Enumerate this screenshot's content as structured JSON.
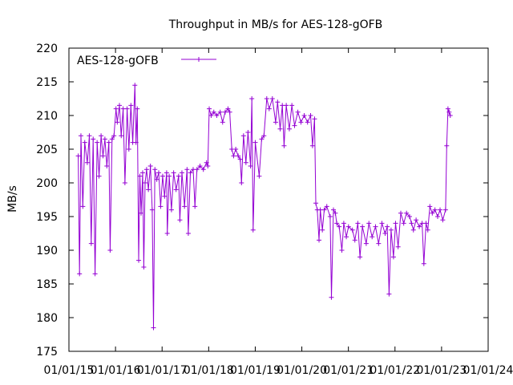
{
  "chart_data": {
    "type": "line",
    "title": "Throughput in MB/s for AES-128-gOFB",
    "xlabel": "",
    "ylabel": "MB/s",
    "ylim": [
      175,
      220
    ],
    "xlim": [
      "2015-01-01",
      "2024-01-01"
    ],
    "x_scale": "date",
    "grid": false,
    "legend": "top-left",
    "yticks": [
      175,
      180,
      185,
      190,
      195,
      200,
      205,
      210,
      215,
      220
    ],
    "xticks": [
      "01/01/15",
      "01/01/16",
      "01/01/17",
      "01/01/18",
      "01/01/19",
      "01/01/20",
      "01/01/21",
      "01/01/22",
      "01/01/23",
      "01/01/24"
    ],
    "series": [
      {
        "name": "AES-128-gOFB",
        "color": "#9400d3",
        "marker": "plus",
        "points": [
          [
            "2015-03-15",
            204
          ],
          [
            "2015-03-25",
            186.5
          ],
          [
            "2015-04-05",
            207
          ],
          [
            "2015-04-20",
            196.5
          ],
          [
            "2015-05-05",
            206
          ],
          [
            "2015-05-25",
            203
          ],
          [
            "2015-06-10",
            207
          ],
          [
            "2015-06-25",
            191
          ],
          [
            "2015-07-10",
            206.5
          ],
          [
            "2015-07-25",
            186.5
          ],
          [
            "2015-08-10",
            206
          ],
          [
            "2015-08-25",
            201
          ],
          [
            "2015-09-10",
            207
          ],
          [
            "2015-09-25",
            204
          ],
          [
            "2015-10-10",
            206.5
          ],
          [
            "2015-10-25",
            202.5
          ],
          [
            "2015-11-10",
            206
          ],
          [
            "2015-11-20",
            190
          ],
          [
            "2015-12-05",
            206.5
          ],
          [
            "2015-12-20",
            207
          ],
          [
            "2016-01-05",
            211
          ],
          [
            "2016-01-15",
            209
          ],
          [
            "2016-02-01",
            211.5
          ],
          [
            "2016-02-15",
            207
          ],
          [
            "2016-03-01",
            211
          ],
          [
            "2016-03-15",
            200
          ],
          [
            "2016-04-01",
            211
          ],
          [
            "2016-04-15",
            205
          ],
          [
            "2016-05-01",
            211.5
          ],
          [
            "2016-05-15",
            206
          ],
          [
            "2016-06-01",
            214.5
          ],
          [
            "2016-06-10",
            206
          ],
          [
            "2016-06-20",
            211
          ],
          [
            "2016-07-01",
            188.5
          ],
          [
            "2016-07-10",
            201
          ],
          [
            "2016-07-20",
            195.5
          ],
          [
            "2016-08-01",
            201.5
          ],
          [
            "2016-08-10",
            187.5
          ],
          [
            "2016-08-20",
            200
          ],
          [
            "2016-09-01",
            202
          ],
          [
            "2016-09-15",
            199
          ],
          [
            "2016-10-01",
            202.5
          ],
          [
            "2016-10-15",
            196
          ],
          [
            "2016-10-25",
            178.5
          ],
          [
            "2016-11-05",
            202
          ],
          [
            "2016-11-20",
            200.5
          ],
          [
            "2016-12-05",
            201.5
          ],
          [
            "2016-12-20",
            196.5
          ],
          [
            "2017-01-05",
            201
          ],
          [
            "2017-01-20",
            198
          ],
          [
            "2017-02-05",
            201.5
          ],
          [
            "2017-02-10",
            192.5
          ],
          [
            "2017-02-25",
            201
          ],
          [
            "2017-03-15",
            196
          ],
          [
            "2017-04-01",
            201.5
          ],
          [
            "2017-04-20",
            199
          ],
          [
            "2017-05-10",
            201
          ],
          [
            "2017-05-20",
            194.5
          ],
          [
            "2017-06-05",
            201.5
          ],
          [
            "2017-06-25",
            196.5
          ],
          [
            "2017-07-15",
            202
          ],
          [
            "2017-07-25",
            192.5
          ],
          [
            "2017-08-10",
            201.5
          ],
          [
            "2017-09-01",
            202
          ],
          [
            "2017-09-15",
            196.5
          ],
          [
            "2017-10-01",
            202
          ],
          [
            "2017-10-25",
            202.5
          ],
          [
            "2017-11-20",
            202
          ],
          [
            "2017-12-15",
            203
          ],
          [
            "2017-12-25",
            202.5
          ],
          [
            "2018-01-05",
            211
          ],
          [
            "2018-01-20",
            210
          ],
          [
            "2018-02-10",
            210.5
          ],
          [
            "2018-03-05",
            210
          ],
          [
            "2018-04-01",
            210.5
          ],
          [
            "2018-04-20",
            209
          ],
          [
            "2018-05-10",
            210.5
          ],
          [
            "2018-06-01",
            211
          ],
          [
            "2018-06-15",
            210.5
          ],
          [
            "2018-07-01",
            205
          ],
          [
            "2018-07-15",
            204
          ],
          [
            "2018-08-01",
            205
          ],
          [
            "2018-08-20",
            204
          ],
          [
            "2018-09-05",
            203.5
          ],
          [
            "2018-09-15",
            200
          ],
          [
            "2018-10-01",
            207
          ],
          [
            "2018-10-20",
            203
          ],
          [
            "2018-11-05",
            207.5
          ],
          [
            "2018-11-25",
            202.5
          ],
          [
            "2018-12-05",
            212.5
          ],
          [
            "2018-12-15",
            193
          ],
          [
            "2019-01-01",
            206
          ],
          [
            "2019-02-01",
            201
          ],
          [
            "2019-02-20",
            206.5
          ],
          [
            "2019-03-10",
            207
          ],
          [
            "2019-04-01",
            212.5
          ],
          [
            "2019-04-20",
            211
          ],
          [
            "2019-05-15",
            212.5
          ],
          [
            "2019-06-10",
            209
          ],
          [
            "2019-06-25",
            212
          ],
          [
            "2019-07-15",
            208
          ],
          [
            "2019-08-01",
            211.5
          ],
          [
            "2019-08-15",
            205.5
          ],
          [
            "2019-09-01",
            211.5
          ],
          [
            "2019-09-25",
            208
          ],
          [
            "2019-10-15",
            211.5
          ],
          [
            "2019-11-05",
            208.5
          ],
          [
            "2019-12-01",
            210.5
          ],
          [
            "2019-12-25",
            209
          ],
          [
            "2020-01-20",
            210
          ],
          [
            "2020-02-15",
            209
          ],
          [
            "2020-03-10",
            210
          ],
          [
            "2020-03-25",
            205.5
          ],
          [
            "2020-04-10",
            209.5
          ],
          [
            "2020-04-20",
            197
          ],
          [
            "2020-05-01",
            196
          ],
          [
            "2020-05-15",
            191.5
          ],
          [
            "2020-05-25",
            196
          ],
          [
            "2020-06-10",
            193
          ],
          [
            "2020-06-25",
            196
          ],
          [
            "2020-07-15",
            196.5
          ],
          [
            "2020-08-10",
            195
          ],
          [
            "2020-08-20",
            183
          ],
          [
            "2020-09-05",
            196
          ],
          [
            "2020-09-20",
            195.5
          ],
          [
            "2020-10-01",
            194
          ],
          [
            "2020-10-20",
            193.5
          ],
          [
            "2020-11-10",
            190
          ],
          [
            "2020-11-25",
            194
          ],
          [
            "2020-12-15",
            192
          ],
          [
            "2021-01-01",
            193.5
          ],
          [
            "2021-02-01",
            193
          ],
          [
            "2021-02-20",
            191.5
          ],
          [
            "2021-03-15",
            194
          ],
          [
            "2021-04-01",
            189
          ],
          [
            "2021-04-20",
            193.5
          ],
          [
            "2021-05-20",
            191
          ],
          [
            "2021-06-10",
            194
          ],
          [
            "2021-07-05",
            192
          ],
          [
            "2021-08-01",
            193.5
          ],
          [
            "2021-08-25",
            191
          ],
          [
            "2021-09-20",
            194
          ],
          [
            "2021-10-15",
            192.5
          ],
          [
            "2021-11-01",
            193.5
          ],
          [
            "2021-11-15",
            183.5
          ],
          [
            "2021-12-01",
            193
          ],
          [
            "2021-12-20",
            189
          ],
          [
            "2022-01-05",
            194
          ],
          [
            "2022-01-25",
            190.5
          ],
          [
            "2022-02-15",
            195.5
          ],
          [
            "2022-03-10",
            194
          ],
          [
            "2022-04-01",
            195.5
          ],
          [
            "2022-04-25",
            195
          ],
          [
            "2022-05-10",
            194
          ],
          [
            "2022-05-25",
            193
          ],
          [
            "2022-06-15",
            194.5
          ],
          [
            "2022-07-10",
            193.5
          ],
          [
            "2022-08-01",
            194
          ],
          [
            "2022-08-15",
            188
          ],
          [
            "2022-09-01",
            194
          ],
          [
            "2022-09-15",
            193
          ],
          [
            "2022-10-01",
            196.5
          ],
          [
            "2022-10-20",
            195.5
          ],
          [
            "2022-11-10",
            196
          ],
          [
            "2022-12-01",
            195
          ],
          [
            "2022-12-20",
            196
          ],
          [
            "2023-01-10",
            194.5
          ],
          [
            "2023-02-01",
            196
          ],
          [
            "2023-02-10",
            205.5
          ],
          [
            "2023-02-20",
            211
          ],
          [
            "2023-03-01",
            210.5
          ],
          [
            "2023-03-10",
            210
          ]
        ]
      }
    ]
  }
}
